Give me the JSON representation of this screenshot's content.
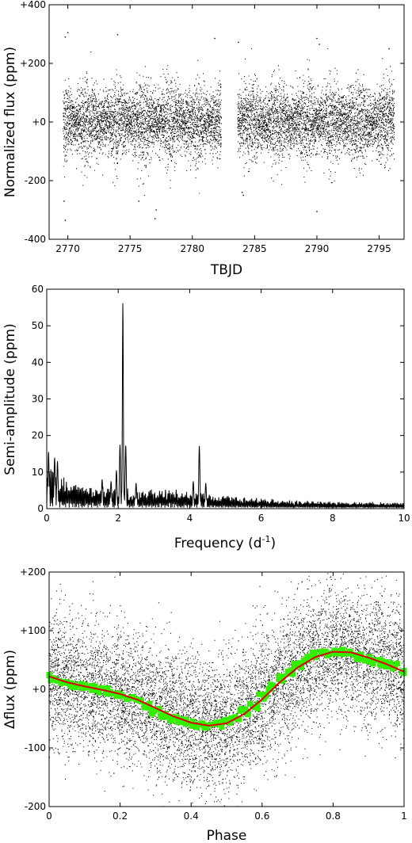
{
  "chart_data": [
    {
      "id": "lightcurve",
      "type": "scatter",
      "title": "",
      "xlabel": "TBJD",
      "ylabel": "Normalized flux (ppm)",
      "xlim": [
        2768.5,
        2797
      ],
      "ylim": [
        -400,
        400
      ],
      "xticks": [
        2770,
        2775,
        2780,
        2785,
        2790,
        2795
      ],
      "xtick_labels": [
        "2770",
        "2775",
        "2780",
        "2785",
        "2790",
        "2795"
      ],
      "yticks": [
        -400,
        -200,
        0,
        200,
        400
      ],
      "ytick_labels": [
        "-400",
        "-200",
        "+0",
        "+200",
        "+400"
      ],
      "grid": false,
      "series": [
        {
          "point_color": "#000000",
          "segments": [
            [
              2769.6,
              2782.3
            ],
            [
              2783.6,
              2796.2
            ]
          ],
          "typical_scatter_ppm": 60,
          "envelope_ppm": [
            -250,
            250
          ],
          "outliers": [
            {
              "x": 2769.8,
              "y": 290
            },
            {
              "x": 2770.0,
              "y": 305
            },
            {
              "x": 2769.7,
              "y": -270
            },
            {
              "x": 2769.8,
              "y": -335
            },
            {
              "x": 2774.0,
              "y": 298
            },
            {
              "x": 2775.7,
              "y": -270
            },
            {
              "x": 2777.0,
              "y": -330
            },
            {
              "x": 2777.1,
              "y": -300
            },
            {
              "x": 2781.8,
              "y": 285
            },
            {
              "x": 2783.7,
              "y": 272
            },
            {
              "x": 2784.0,
              "y": -240
            },
            {
              "x": 2784.1,
              "y": -250
            },
            {
              "x": 2790.0,
              "y": 285
            },
            {
              "x": 2790.2,
              "y": 265
            },
            {
              "x": 2790.0,
              "y": -305
            },
            {
              "x": 2795.8,
              "y": 250
            }
          ]
        }
      ]
    },
    {
      "id": "periodogram",
      "type": "line",
      "title": "",
      "xlabel": "Frequency (d",
      "xlabel_sup": "-1",
      "xlabel_tail": ")",
      "ylabel": "Semi-amplitude (ppm)",
      "xlim": [
        0,
        10
      ],
      "ylim": [
        0,
        60
      ],
      "xticks": [
        0,
        2,
        4,
        6,
        8,
        10
      ],
      "xtick_labels": [
        "0",
        "2",
        "4",
        "6",
        "8",
        "10"
      ],
      "yticks": [
        0,
        10,
        20,
        30,
        40,
        50,
        60
      ],
      "ytick_labels": [
        "0",
        "10",
        "20",
        "30",
        "40",
        "50",
        "60"
      ],
      "grid": false,
      "series": [
        {
          "line_color": "#000000",
          "peaks": [
            {
              "x": 2.13,
              "y": 56.5
            },
            {
              "x": 2.05,
              "y": 17.5
            },
            {
              "x": 2.21,
              "y": 17.5
            },
            {
              "x": 4.27,
              "y": 17.2
            },
            {
              "x": 0.05,
              "y": 15.5
            },
            {
              "x": 0.22,
              "y": 14.0
            },
            {
              "x": 0.3,
              "y": 13.0
            },
            {
              "x": 1.95,
              "y": 10.5
            },
            {
              "x": 1.55,
              "y": 8.0
            },
            {
              "x": 1.8,
              "y": 7.5
            },
            {
              "x": 4.1,
              "y": 7.5
            },
            {
              "x": 4.45,
              "y": 7.0
            },
            {
              "x": 2.5,
              "y": 7.0
            }
          ],
          "noise_floor_ppm": [
            {
              "x": 0,
              "y": 8
            },
            {
              "x": 0.5,
              "y": 6
            },
            {
              "x": 1,
              "y": 4.5
            },
            {
              "x": 2,
              "y": 4
            },
            {
              "x": 3,
              "y": 3.8
            },
            {
              "x": 4,
              "y": 3.5
            },
            {
              "x": 5,
              "y": 2.5
            },
            {
              "x": 6,
              "y": 2
            },
            {
              "x": 7,
              "y": 1.6
            },
            {
              "x": 8,
              "y": 1.3
            },
            {
              "x": 10,
              "y": 1.2
            }
          ]
        }
      ]
    },
    {
      "id": "phasefold",
      "type": "scatter",
      "title": "",
      "xlabel": "Phase",
      "ylabel": "Δflux (ppm)",
      "xlim": [
        0,
        1
      ],
      "ylim": [
        -200,
        200
      ],
      "xticks": [
        0,
        0.2,
        0.4,
        0.6,
        0.8,
        1
      ],
      "xtick_labels": [
        "0",
        "0.2",
        "0.4",
        "0.6",
        "0.8",
        "1"
      ],
      "yticks": [
        -200,
        -100,
        0,
        100,
        200
      ],
      "ytick_labels": [
        "-200",
        "-100",
        "+0",
        "+100",
        "+200"
      ],
      "grid": false,
      "series": [
        {
          "kind": "scatter",
          "point_color": "#000000",
          "typical_scatter_ppm": 55
        },
        {
          "kind": "binned",
          "marker_color": "#33ee00",
          "x": [
            0.0,
            0.025,
            0.05,
            0.075,
            0.1,
            0.125,
            0.15,
            0.175,
            0.2,
            0.225,
            0.25,
            0.275,
            0.3,
            0.325,
            0.35,
            0.375,
            0.4,
            0.425,
            0.45,
            0.475,
            0.5,
            0.525,
            0.55,
            0.575,
            0.6,
            0.625,
            0.65,
            0.675,
            0.7,
            0.725,
            0.75,
            0.775,
            0.8,
            0.825,
            0.85,
            0.875,
            0.9,
            0.925,
            0.95,
            0.975,
            1.0
          ],
          "y": [
            20,
            15,
            10,
            7,
            5,
            2,
            -2,
            -3,
            -8,
            -15,
            -20,
            -28,
            -38,
            -45,
            -50,
            -55,
            -58,
            -62,
            -62,
            -60,
            -56,
            -48,
            -38,
            -28,
            -12,
            5,
            18,
            30,
            42,
            52,
            58,
            62,
            65,
            64,
            61,
            56,
            52,
            46,
            43,
            40,
            32
          ]
        },
        {
          "kind": "model",
          "line_color": "#dd0000",
          "x": [
            0.0,
            0.05,
            0.1,
            0.15,
            0.2,
            0.25,
            0.3,
            0.35,
            0.4,
            0.45,
            0.5,
            0.55,
            0.6,
            0.65,
            0.7,
            0.75,
            0.8,
            0.85,
            0.9,
            0.95,
            1.0
          ],
          "y": [
            22,
            12,
            5,
            -1,
            -8,
            -18,
            -32,
            -46,
            -57,
            -62,
            -58,
            -42,
            -17,
            12,
            37,
            55,
            64,
            63,
            54,
            43,
            30
          ]
        }
      ]
    }
  ]
}
